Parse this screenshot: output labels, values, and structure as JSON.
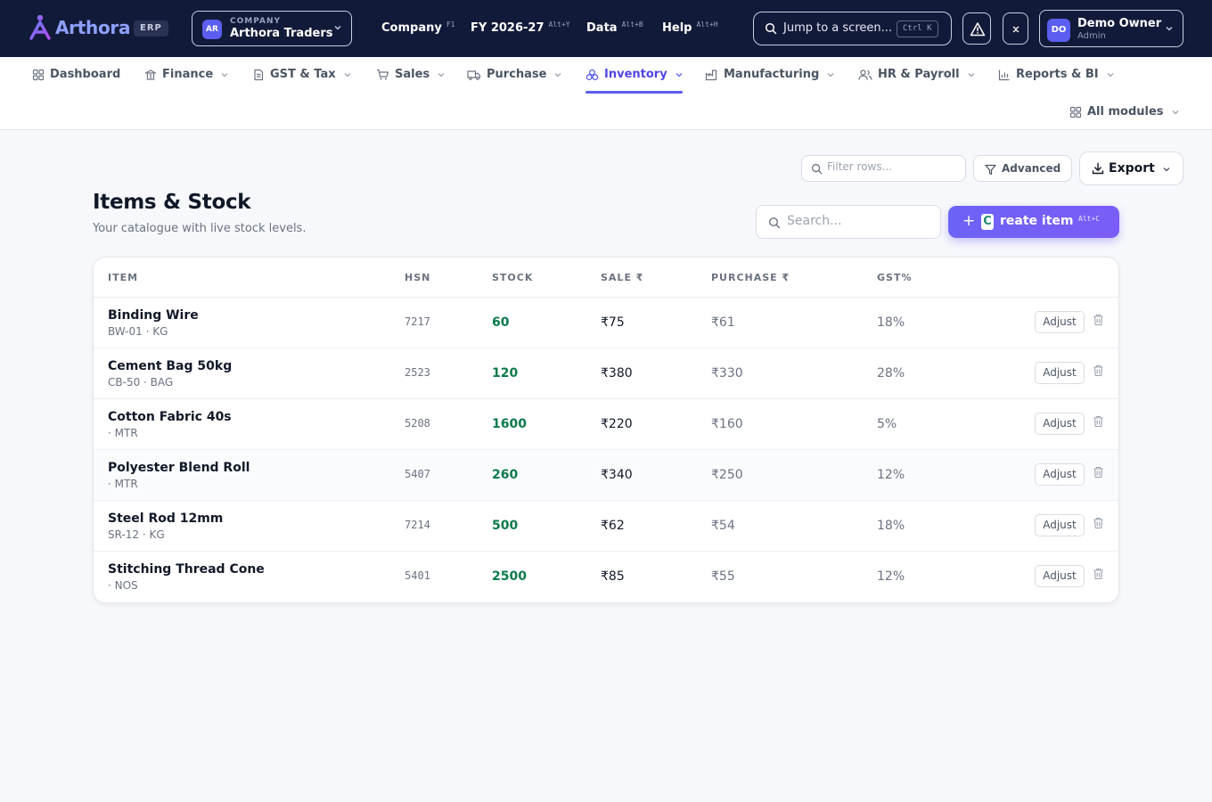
{
  "brand": {
    "name": "Arthora",
    "badge": "ERP"
  },
  "company": {
    "caption": "COMPANY",
    "initials": "AR",
    "name": "Arthora Traders"
  },
  "top_nav": [
    {
      "label": "Company",
      "shortcut": "F1"
    },
    {
      "label": "FY 2026-27",
      "shortcut": "Alt+Y"
    },
    {
      "label": "Data",
      "shortcut": "Alt+B"
    },
    {
      "label": "Help",
      "shortcut": "Alt+H"
    }
  ],
  "jump": {
    "placeholder": "Jump to a screen...",
    "shortcut": "Ctrl K"
  },
  "user": {
    "initials": "DO",
    "name": "Demo Owner",
    "role": "Admin"
  },
  "modules": [
    {
      "label": "Dashboard",
      "icon": "grid-icon",
      "has_menu": false
    },
    {
      "label": "Finance",
      "icon": "bank-icon",
      "has_menu": true
    },
    {
      "label": "GST & Tax",
      "icon": "document-icon",
      "has_menu": true
    },
    {
      "label": "Sales",
      "icon": "cart-icon",
      "has_menu": true
    },
    {
      "label": "Purchase",
      "icon": "truck-icon",
      "has_menu": true
    },
    {
      "label": "Inventory",
      "icon": "boxes-icon",
      "has_menu": true,
      "active": true
    },
    {
      "label": "Manufacturing",
      "icon": "factory-icon",
      "has_menu": true
    },
    {
      "label": "HR & Payroll",
      "icon": "users-icon",
      "has_menu": true
    },
    {
      "label": "Reports & BI",
      "icon": "bar-chart-icon",
      "has_menu": true
    },
    {
      "label": "All modules",
      "icon": "grid-icon",
      "has_menu": true
    }
  ],
  "toolbar": {
    "filter_placeholder": "Filter rows...",
    "advanced_label": "Advanced",
    "export_label": "Export"
  },
  "page": {
    "title": "Items & Stock",
    "subtitle": "Your catalogue with live stock levels.",
    "search_placeholder": "Search...",
    "create_key": "C",
    "create_rest": "reate item",
    "create_shortcut": "Alt+C"
  },
  "table": {
    "columns": [
      "ITEM",
      "HSN",
      "STOCK",
      "SALE ₹",
      "PURCHASE ₹",
      "GST%"
    ],
    "adjust_label": "Adjust",
    "rows": [
      {
        "name": "Binding Wire",
        "code": "BW-01 · KG",
        "hsn": "7217",
        "stock": "60",
        "sale": "₹75",
        "purchase": "₹61",
        "gst": "18%"
      },
      {
        "name": "Cement Bag 50kg",
        "code": "CB-50 · BAG",
        "hsn": "2523",
        "stock": "120",
        "sale": "₹380",
        "purchase": "₹330",
        "gst": "28%"
      },
      {
        "name": "Cotton Fabric 40s",
        "code": "· MTR",
        "hsn": "5208",
        "stock": "1600",
        "sale": "₹220",
        "purchase": "₹160",
        "gst": "5%"
      },
      {
        "name": "Polyester Blend Roll",
        "code": "· MTR",
        "hsn": "5407",
        "stock": "260",
        "sale": "₹340",
        "purchase": "₹250",
        "gst": "12%"
      },
      {
        "name": "Steel Rod 12mm",
        "code": "SR-12 · KG",
        "hsn": "7214",
        "stock": "500",
        "sale": "₹62",
        "purchase": "₹54",
        "gst": "18%"
      },
      {
        "name": "Stitching Thread Cone",
        "code": "· NOS",
        "hsn": "5401",
        "stock": "2500",
        "sale": "₹85",
        "purchase": "₹55",
        "gst": "12%"
      }
    ]
  },
  "colors": {
    "accent": "#5b5ef0",
    "topbar": "#121a39",
    "stock_green": "#0b7a4b"
  }
}
